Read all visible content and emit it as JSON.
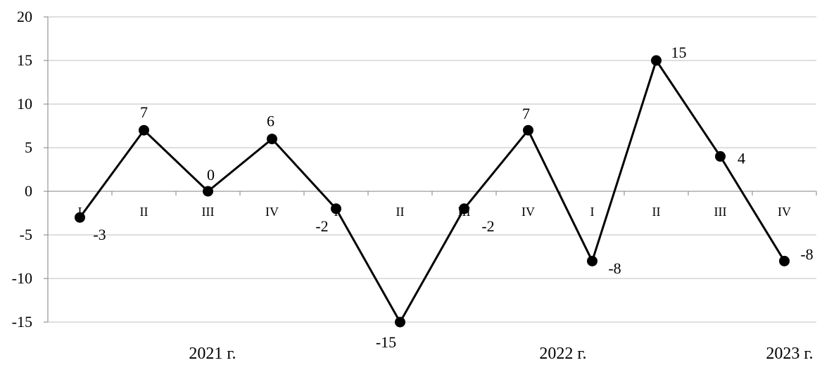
{
  "chart_data": {
    "type": "line",
    "categories": [
      "I",
      "II",
      "III",
      "IV",
      "I",
      "II",
      "III",
      "IV",
      "I",
      "II",
      "III",
      "IV"
    ],
    "series": [
      {
        "values": [
          -3,
          7,
          0,
          6,
          -2,
          -15,
          -2,
          7,
          -8,
          15,
          4,
          -8
        ]
      }
    ],
    "data_labels": [
      "-3",
      "7",
      "0",
      "6",
      "-2",
      "-15",
      "-2",
      "7",
      "-8",
      "15",
      "4",
      "-8"
    ],
    "year_labels": [
      "2021 г.",
      "2022 г.",
      "2023 г."
    ],
    "ylim": [
      -15,
      20
    ],
    "yticks": [
      20,
      15,
      10,
      5,
      0,
      -5,
      -10,
      -15
    ],
    "grid": true,
    "legend": "none",
    "colors": {
      "line": "#000000",
      "marker": "#000000",
      "grid": "#bfbfbf",
      "axis": "#808080"
    }
  }
}
